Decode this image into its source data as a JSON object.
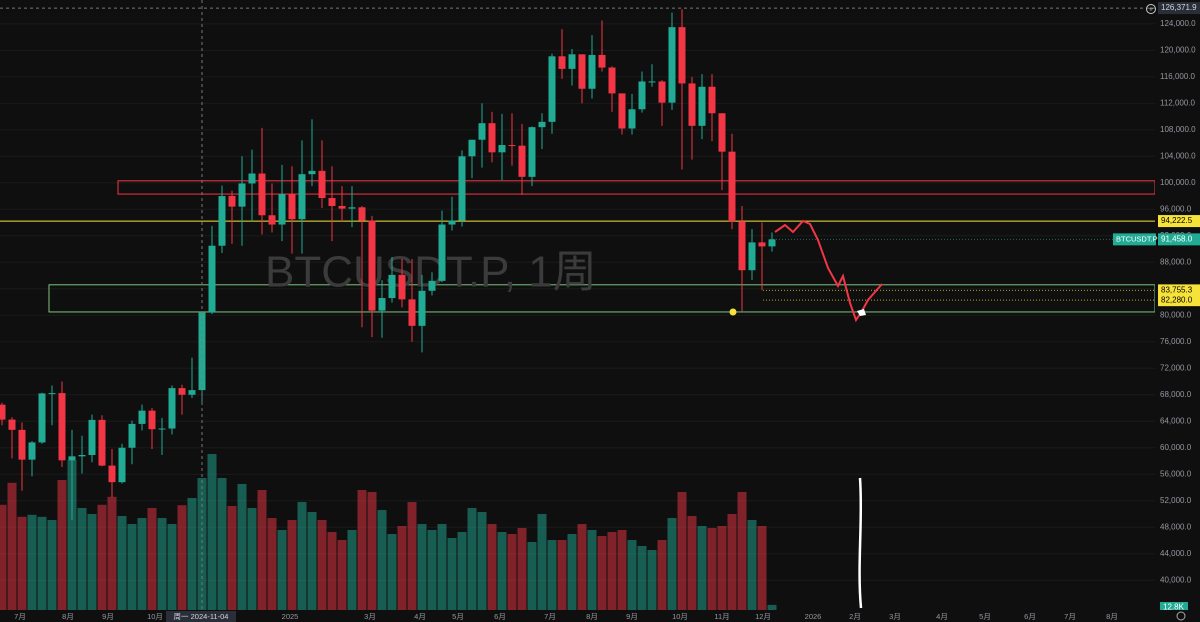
{
  "chart_data": {
    "type": "candlestick",
    "watermark": "BTCUSDT.P, 1周",
    "symbol": "BTCUSDT.P",
    "crosshair": {
      "value": 126371.9,
      "label": "126,371.9"
    },
    "crosshair_date": "周一 2024-11-04",
    "up_color": "#22ab94",
    "down_color": "#f23645",
    "ylim": [
      35500,
      127600
    ],
    "yticks": [
      {
        "value": 40000,
        "label": "40,000.0"
      },
      {
        "value": 44000,
        "label": "44,000.0"
      },
      {
        "value": 48000,
        "label": "48,000.0"
      },
      {
        "value": 52000,
        "label": "52,000.0"
      },
      {
        "value": 56000,
        "label": "56,000.0"
      },
      {
        "value": 60000,
        "label": "60,000.0"
      },
      {
        "value": 64000,
        "label": "64,000.0"
      },
      {
        "value": 68000,
        "label": "68,000.0"
      },
      {
        "value": 72000,
        "label": "72,000.0"
      },
      {
        "value": 76000,
        "label": "76,000.0"
      },
      {
        "value": 80000,
        "label": "80,000.0"
      },
      {
        "value": 84000,
        "label": "84,000.0"
      },
      {
        "value": 88000,
        "label": "88,000.0"
      },
      {
        "value": 92000,
        "label": "92,000.0"
      },
      {
        "value": 96000,
        "label": "96,000.0"
      },
      {
        "value": 100000,
        "label": "100,000.0"
      },
      {
        "value": 104000,
        "label": "104,000.0"
      },
      {
        "value": 108000,
        "label": "108,000.0"
      },
      {
        "value": 112000,
        "label": "112,000.0"
      },
      {
        "value": 116000,
        "label": "116,000.0"
      },
      {
        "value": 120000,
        "label": "120,000.0"
      },
      {
        "value": 124000,
        "label": "124,000.0"
      }
    ],
    "price_marks": [
      {
        "value": 94222.5,
        "label": "94,222.5",
        "color": "#f7e23a"
      },
      {
        "value": 91458.0,
        "label": "91,458.0",
        "color": "#22ab94"
      },
      {
        "value": 83755.3,
        "label": "83,755.3",
        "color": "#f7e23a"
      },
      {
        "value": 82280.0,
        "label": "82,280.0",
        "color": "#f7e23a"
      }
    ],
    "zones": [
      {
        "top": 100300,
        "bottom": 98300,
        "color": "#f23645"
      },
      {
        "top": 84600,
        "bottom": 80500,
        "color": "#7cc47f"
      }
    ],
    "x_labels": [
      "7月",
      "8月",
      "9月",
      "10月",
      "2025",
      "3月",
      "4月",
      "5月",
      "6月",
      "7月",
      "8月",
      "9月",
      "10月",
      "11月",
      "12月",
      "2026",
      "2月",
      "3月",
      "4月",
      "5月",
      "6月",
      "7月",
      "8月"
    ],
    "volume_ylim": [
      0,
      400
    ],
    "volume_label": "12.8K",
    "open": [
      66500,
      64250,
      62700,
      58200,
      60800,
      68200,
      68250,
      58100,
      58700,
      58900,
      64200,
      57300,
      54800,
      60000,
      63600,
      65600,
      62800,
      62900,
      69000,
      68000,
      68700,
      80400,
      90500,
      98000,
      96400,
      99900,
      101400,
      95100,
      93700,
      98300,
      94500,
      101300,
      101800,
      97700,
      96500,
      96100,
      96300,
      94300,
      80700,
      82600,
      86100,
      82400,
      78400,
      83700,
      85200,
      93700,
      94300,
      104000,
      106500,
      109000,
      104600,
      105700,
      105600,
      100900,
      108400,
      109200,
      119100,
      117200,
      119400,
      114200,
      119300,
      117400,
      113500,
      108200,
      111100,
      115300,
      115300,
      112100,
      123500,
      115000,
      108600,
      114500,
      110500,
      104700,
      94200,
      86800,
      91000,
      90400
    ],
    "high": [
      66800,
      64600,
      63800,
      61000,
      68300,
      69400,
      70000,
      62700,
      61800,
      65000,
      64900,
      59800,
      60600,
      64100,
      66500,
      66000,
      64500,
      69400,
      69500,
      73600,
      80500,
      93500,
      99600,
      98800,
      104000,
      105000,
      108300,
      99900,
      102700,
      102500,
      106400,
      109600,
      106400,
      102500,
      99500,
      99500,
      96500,
      95000,
      85300,
      88800,
      88500,
      88500,
      86100,
      86500,
      95800,
      97900,
      104900,
      106500,
      112000,
      110700,
      110400,
      110500,
      108900,
      108500,
      110500,
      119500,
      123200,
      120200,
      119300,
      122300,
      124500,
      117600,
      113400,
      113400,
      116800,
      117900,
      115500,
      125700,
      126200,
      116000,
      116400,
      116400,
      110500,
      107400,
      96500,
      93000,
      94000,
      92500
    ],
    "low": [
      63400,
      58400,
      53500,
      55700,
      60600,
      63400,
      57100,
      49100,
      56100,
      57800,
      57200,
      52550,
      54600,
      57500,
      62600,
      59800,
      58900,
      62000,
      65000,
      67500,
      66800,
      80200,
      89400,
      90800,
      90500,
      94200,
      92200,
      92500,
      91200,
      89300,
      89300,
      99500,
      96200,
      91200,
      94100,
      93300,
      78200,
      76700,
      76600,
      81900,
      81200,
      76000,
      74400,
      83000,
      85000,
      92800,
      93400,
      100700,
      102300,
      103100,
      100400,
      102600,
      98200,
      99500,
      105100,
      107400,
      115700,
      114700,
      112000,
      112700,
      116800,
      110700,
      107300,
      107300,
      110600,
      114500,
      108600,
      111000,
      102000,
      103500,
      106600,
      106300,
      98900,
      93000,
      80600,
      85300,
      83800,
      89600
    ],
    "close": [
      64250,
      62700,
      58200,
      60800,
      68200,
      68250,
      58100,
      58700,
      58900,
      64200,
      57300,
      54800,
      60000,
      63600,
      65600,
      62800,
      62900,
      69000,
      68000,
      68700,
      80400,
      90500,
      98000,
      96400,
      99900,
      101400,
      95100,
      93700,
      98300,
      94500,
      101300,
      101800,
      97700,
      96500,
      96100,
      96300,
      94300,
      80700,
      82600,
      86100,
      82400,
      78400,
      83700,
      85200,
      93700,
      94300,
      104000,
      106500,
      109000,
      104600,
      105700,
      105600,
      100900,
      108400,
      109200,
      119100,
      117200,
      119400,
      114200,
      119300,
      117400,
      113500,
      108200,
      111100,
      115300,
      115300,
      112100,
      123500,
      115000,
      108600,
      114500,
      110500,
      104700,
      94200,
      86800,
      91000,
      90400,
      91458
    ],
    "volume": [
      263,
      318,
      233,
      238,
      233,
      225,
      325,
      375,
      255,
      240,
      263,
      283,
      235,
      215,
      230,
      255,
      230,
      215,
      262,
      280,
      330,
      390,
      330,
      260,
      315,
      255,
      300,
      230,
      200,
      225,
      270,
      245,
      225,
      195,
      175,
      200,
      300,
      295,
      250,
      190,
      210,
      270,
      215,
      200,
      215,
      180,
      195,
      255,
      245,
      215,
      195,
      190,
      205,
      170,
      240,
      175,
      175,
      190,
      215,
      200,
      185,
      195,
      200,
      175,
      160,
      150,
      175,
      230,
      295,
      235,
      210,
      205,
      210,
      240,
      295,
      225,
      210,
      12.8
    ]
  }
}
